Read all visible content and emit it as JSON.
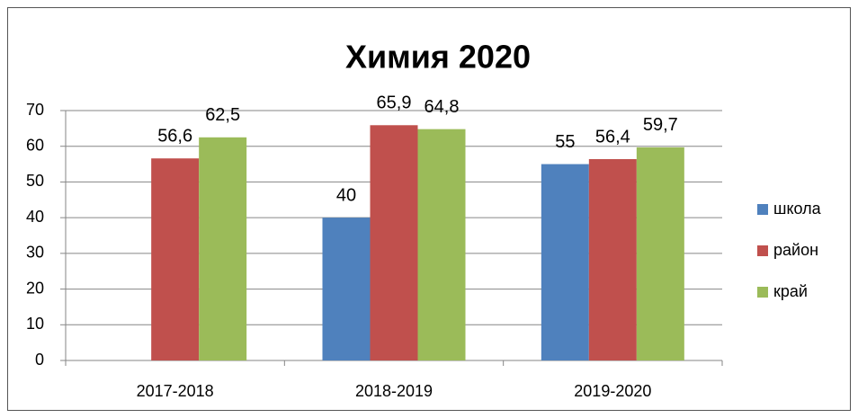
{
  "chart_data": {
    "type": "bar",
    "title": "Химия 2020",
    "categories": [
      "2017-2018",
      "2018-2019",
      "2019-2020"
    ],
    "series": [
      {
        "name": "школа",
        "color": "#4f81bd",
        "values": [
          null,
          40,
          55
        ],
        "value_labels": [
          null,
          "40",
          "55"
        ]
      },
      {
        "name": "район",
        "color": "#c0504d",
        "values": [
          56.6,
          65.9,
          56.4
        ],
        "value_labels": [
          "56,6",
          "65,9",
          "56,4"
        ]
      },
      {
        "name": "край",
        "color": "#9bbb59",
        "values": [
          62.5,
          64.8,
          59.7
        ],
        "value_labels": [
          "62,5",
          "64,8",
          "59,7"
        ]
      }
    ],
    "ylim": [
      0,
      70
    ],
    "yticks": [
      0,
      10,
      20,
      30,
      40,
      50,
      60,
      70
    ],
    "grid": true,
    "legend": "right"
  }
}
